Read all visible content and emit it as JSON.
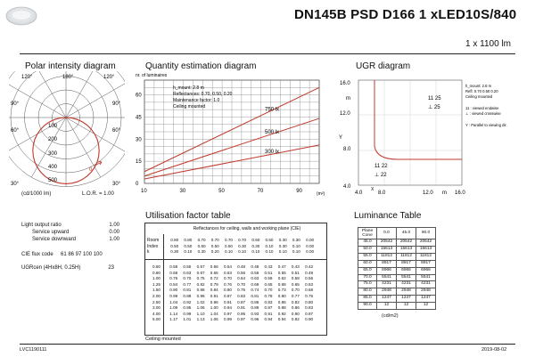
{
  "header": {
    "product_title": "DN145B PSD D166 1 xLED10S/840",
    "lumen_text": "1 x 1100 lm"
  },
  "polar": {
    "title": "Polar intensity diagram",
    "angle_top_left": "120°",
    "angle_top_mid": "180°",
    "angle_top_right": "120°",
    "angle_90_left": "90°",
    "angle_90_right": "90°",
    "angle_60_left": "60°",
    "angle_60_right": "60°",
    "angle_30_left": "30°",
    "angle_30_right": "30°",
    "angle_bottom": "0°",
    "ring_labels": [
      "100",
      "200",
      "300",
      "400",
      "500"
    ],
    "curve_label": "0",
    "unit_text": "(cd/1000 lm)",
    "lor_text": "L.O.R. = 1.00",
    "colors": {
      "curve": "#c0392b",
      "grid": "#555555"
    }
  },
  "quantity": {
    "title": "Quantity estimation diagram",
    "y_axis_label": "nr. of luminaires",
    "info": [
      "h_mount: 2.8 m",
      "Reflectances: 0.70, 0.50, 0.20",
      "Maintenance factor: 1.0",
      "Ceiling mounted"
    ],
    "x_unit": "(m²)",
    "chart_data": {
      "type": "line",
      "x_ticks": [
        10,
        30,
        50,
        70,
        90
      ],
      "y_ticks": [
        0,
        15,
        30,
        45,
        60
      ],
      "xlim": [
        10,
        100
      ],
      "ylim": [
        0,
        70
      ],
      "series": [
        {
          "name": "750 lx",
          "x": [
            10,
            100
          ],
          "y": [
            8,
            65
          ]
        },
        {
          "name": "500 lx",
          "x": [
            10,
            100
          ],
          "y": [
            5,
            44
          ]
        },
        {
          "name": "300 lx",
          "x": [
            10,
            100
          ],
          "y": [
            3,
            26
          ]
        }
      ]
    }
  },
  "ugr": {
    "title": "UGR diagram",
    "y_axis_letter": "Y",
    "x_axis_letter": "X",
    "y_unit": "m",
    "x_unit": "m",
    "y_ticks": [
      "16.0",
      "12.0",
      "8.0",
      "4.0"
    ],
    "x_ticks": [
      "4.0",
      "8.0",
      "12.0",
      "m",
      "16.0"
    ],
    "zone_top": [
      "11 25",
      "⊥ 25"
    ],
    "zone_bottom": [
      "11 22",
      "⊥ 22"
    ],
    "legend": [
      "h_mount: 2.8 m",
      "Refl: 0.70 0.50 0.20",
      "Ceiling mounted",
      "",
      "11 : viewed endwise",
      "⊥ : viewed crosswise",
      "",
      "Y : Parallel to viewing dir."
    ]
  },
  "left_info": {
    "rows": [
      {
        "label": "Light output ratio",
        "value": "1.00"
      },
      {
        "label": "Service upward",
        "value": "0.00"
      },
      {
        "label": "Service downward",
        "value": "1.00"
      },
      {
        "label": "CIE flux code",
        "value": "61 86 97 100 100"
      },
      {
        "label": "UGRcen (4Hx8H, 0.25H)",
        "value": "23"
      }
    ]
  },
  "util": {
    "title": "Utilisation factor table",
    "header_text": "Reflectances for ceiling, walls and working plane (CIE)",
    "room_label": [
      "Room",
      "Index",
      "k"
    ],
    "refl_rows": [
      [
        "0.80",
        "0.80",
        "0.70",
        "0.70",
        "0.70",
        "0.70",
        "0.50",
        "0.50",
        "0.30",
        "0.30",
        "0.00"
      ],
      [
        "0.50",
        "0.50",
        "0.50",
        "0.50",
        "0.50",
        "0.30",
        "0.30",
        "0.10",
        "0.30",
        "0.10",
        "0.00"
      ],
      [
        "0.30",
        "0.10",
        "0.30",
        "0.20",
        "0.10",
        "0.10",
        "0.10",
        "0.10",
        "0.10",
        "0.10",
        "0.00"
      ]
    ],
    "rows": [
      [
        "0.60",
        "0.58",
        "0.55",
        "0.57",
        "0.56",
        "0.54",
        "0.48",
        "0.48",
        "0.43",
        "0.47",
        "0.43",
        "0.42"
      ],
      [
        "0.80",
        "0.68",
        "0.63",
        "0.67",
        "0.65",
        "0.63",
        "0.56",
        "0.56",
        "0.51",
        "0.55",
        "0.51",
        "0.49"
      ],
      [
        "1.00",
        "0.76",
        "0.70",
        "0.75",
        "0.72",
        "0.70",
        "0.64",
        "0.63",
        "0.59",
        "0.62",
        "0.58",
        "0.56"
      ],
      [
        "1.25",
        "0.84",
        "0.77",
        "0.82",
        "0.79",
        "0.76",
        "0.70",
        "0.69",
        "0.65",
        "0.68",
        "0.65",
        "0.63"
      ],
      [
        "1.50",
        "0.90",
        "0.81",
        "0.88",
        "0.84",
        "0.80",
        "0.75",
        "0.74",
        "0.70",
        "0.73",
        "0.70",
        "0.68"
      ],
      [
        "2.00",
        "0.99",
        "0.88",
        "0.96",
        "0.91",
        "0.87",
        "0.83",
        "0.81",
        "0.78",
        "0.80",
        "0.77",
        "0.75"
      ],
      [
        "2.50",
        "1.04",
        "0.92",
        "1.02",
        "0.96",
        "0.91",
        "0.87",
        "0.86",
        "0.83",
        "0.85",
        "0.82",
        "0.80"
      ],
      [
        "3.00",
        "1.09",
        "0.95",
        "1.06",
        "1.00",
        "0.94",
        "0.91",
        "0.89",
        "0.87",
        "0.88",
        "0.86",
        "0.83"
      ],
      [
        "4.00",
        "1.14",
        "0.99",
        "1.10",
        "1.04",
        "0.97",
        "0.95",
        "0.93",
        "0.91",
        "0.92",
        "0.90",
        "0.87"
      ],
      [
        "5.00",
        "1.17",
        "1.01",
        "1.13",
        "1.06",
        "0.99",
        "0.97",
        "0.96",
        "0.94",
        "0.94",
        "0.92",
        "0.90"
      ]
    ],
    "footer": "Ceiling mounted"
  },
  "luminance": {
    "title": "Luminance Table",
    "headers": [
      "Plane\nCone",
      "0.0",
      "45.0",
      "90.0"
    ],
    "rows": [
      [
        "45.0",
        "20542",
        "20542",
        "20542"
      ],
      [
        "50.0",
        "15613",
        "15613",
        "15613"
      ],
      [
        "55.0",
        "11812",
        "11812",
        "11812"
      ],
      [
        "60.0",
        "8917",
        "8917",
        "8917"
      ],
      [
        "65.0",
        "6966",
        "6966",
        "6966"
      ],
      [
        "70.0",
        "5541",
        "5541",
        "5541"
      ],
      [
        "75.0",
        "4231",
        "4231",
        "4231"
      ],
      [
        "80.0",
        "2948",
        "2948",
        "2948"
      ],
      [
        "85.0",
        "1247",
        "1247",
        "1247"
      ],
      [
        "90.0",
        "12",
        "12",
        "12"
      ]
    ],
    "unit": "(cd/m2)"
  },
  "footer": {
    "left_code": "LVC1190111",
    "date": "2019-08-02"
  }
}
